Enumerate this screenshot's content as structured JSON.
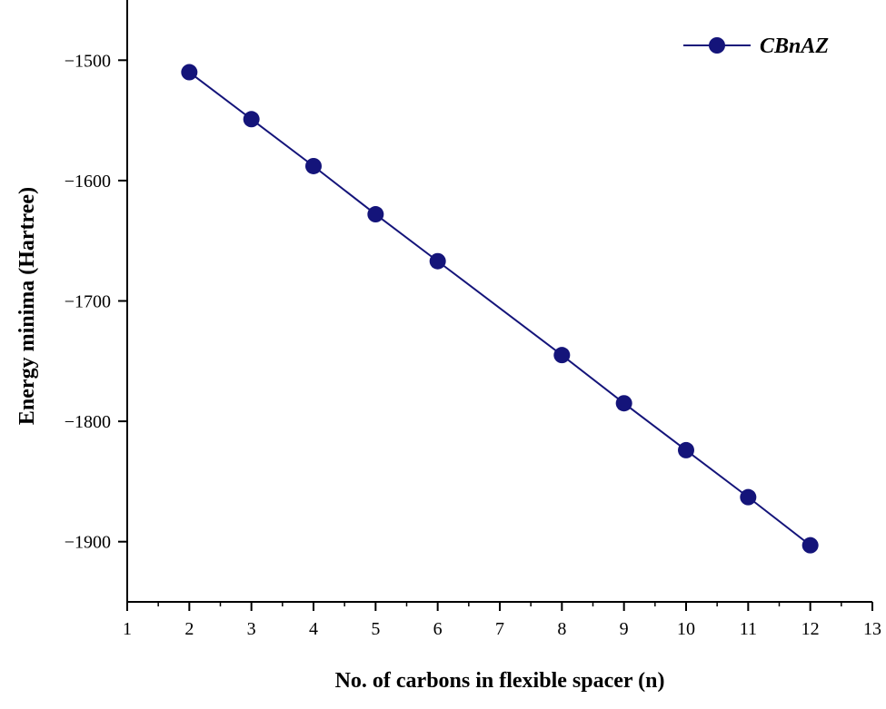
{
  "chart_data": {
    "type": "line",
    "title": "",
    "xlabel": "No. of carbons in flexible spacer (n)",
    "ylabel": "Energy minima (Hartree)",
    "xlim": [
      1,
      13
    ],
    "ylim": [
      -1950,
      -1450
    ],
    "x_ticks": [
      1,
      2,
      3,
      4,
      5,
      6,
      7,
      8,
      9,
      10,
      11,
      12,
      13
    ],
    "y_ticks": [
      -1500,
      -1600,
      -1700,
      -1800,
      -1900
    ],
    "grid": false,
    "legend_position": "top-right",
    "series": [
      {
        "name": "CBnAZ",
        "color": "#14147a",
        "marker": "circle",
        "x": [
          2,
          3,
          4,
          5,
          6,
          8,
          9,
          10,
          11,
          12
        ],
        "y": [
          -1510,
          -1549,
          -1588,
          -1628,
          -1667,
          -1745,
          -1785,
          -1824,
          -1863,
          -1903
        ]
      }
    ]
  }
}
